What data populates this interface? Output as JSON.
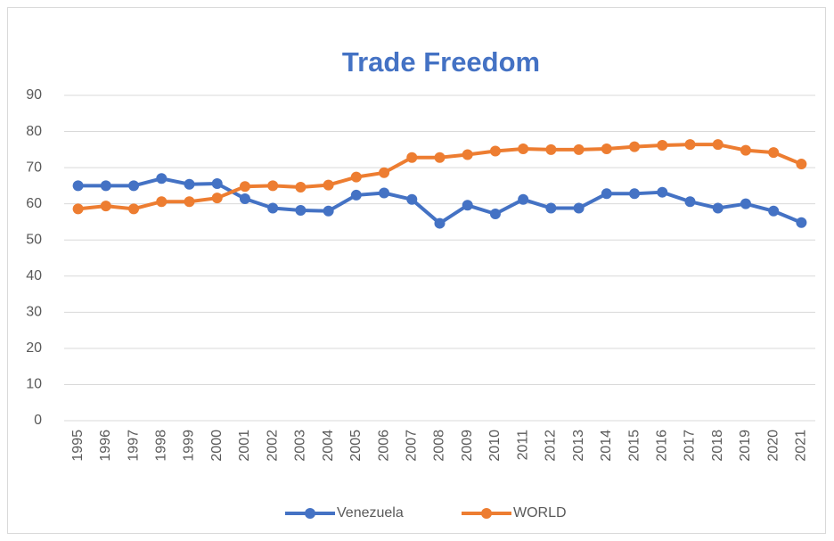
{
  "chart_data": {
    "type": "line",
    "title": "Trade Freedom",
    "categories": [
      "1995",
      "1996",
      "1997",
      "1998",
      "1999",
      "2000",
      "2001",
      "2002",
      "2003",
      "2004",
      "2005",
      "2006",
      "2007",
      "2008",
      "2009",
      "2010",
      "2011",
      "2012",
      "2013",
      "2014",
      "2015",
      "2016",
      "2017",
      "2018",
      "2019",
      "2020",
      "2021"
    ],
    "series": [
      {
        "name": "Venezuela",
        "color": "#4472c4",
        "values": [
          65,
          65,
          65,
          67,
          65.4,
          65.6,
          61.4,
          58.8,
          58.2,
          58,
          62.4,
          63,
          61.2,
          54.6,
          59.6,
          57.2,
          61.2,
          58.8,
          58.8,
          62.8,
          62.8,
          63.2,
          60.6,
          58.8,
          60,
          58,
          54.8
        ]
      },
      {
        "name": "WORLD",
        "color": "#ed7d31",
        "values": [
          58.6,
          59.4,
          58.6,
          60.6,
          60.6,
          61.6,
          64.8,
          65,
          64.6,
          65.2,
          67.4,
          68.6,
          72.8,
          72.8,
          73.6,
          74.6,
          75.2,
          75,
          75,
          75.2,
          75.8,
          76.2,
          76.4,
          76.4,
          74.8,
          74.2,
          71
        ]
      }
    ],
    "ylim": [
      0,
      90
    ],
    "yticks": [
      0,
      10,
      20,
      30,
      40,
      50,
      60,
      70,
      80,
      90
    ],
    "grid": true,
    "legend": "bottom"
  }
}
